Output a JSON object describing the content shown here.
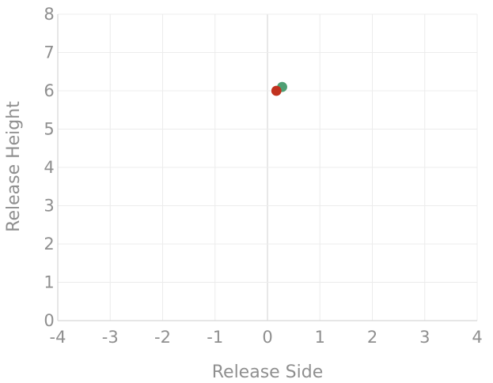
{
  "chart_data": {
    "type": "scatter",
    "title": "",
    "xlabel": "Release Side",
    "ylabel": "Release Height",
    "xlim": [
      -4,
      4
    ],
    "ylim": [
      0,
      8
    ],
    "x_ticks": [
      -4,
      -3,
      -2,
      -1,
      0,
      1,
      2,
      3,
      4
    ],
    "y_ticks": [
      0,
      1,
      2,
      3,
      4,
      5,
      6,
      7,
      8
    ],
    "x_tick_labels": [
      "-4",
      "-3",
      "-2",
      "-1",
      "0",
      "1",
      "2",
      "3",
      "4"
    ],
    "y_tick_labels": [
      "0",
      "1",
      "2",
      "3",
      "4",
      "5",
      "6",
      "7",
      "8"
    ],
    "grid": true,
    "legend": "none",
    "series": [
      {
        "color": "#4f9f74",
        "points": [
          {
            "x": 0.28,
            "y": 6.1
          }
        ]
      },
      {
        "color": "#c1321f",
        "points": [
          {
            "x": 0.17,
            "y": 6.0
          }
        ]
      }
    ]
  }
}
